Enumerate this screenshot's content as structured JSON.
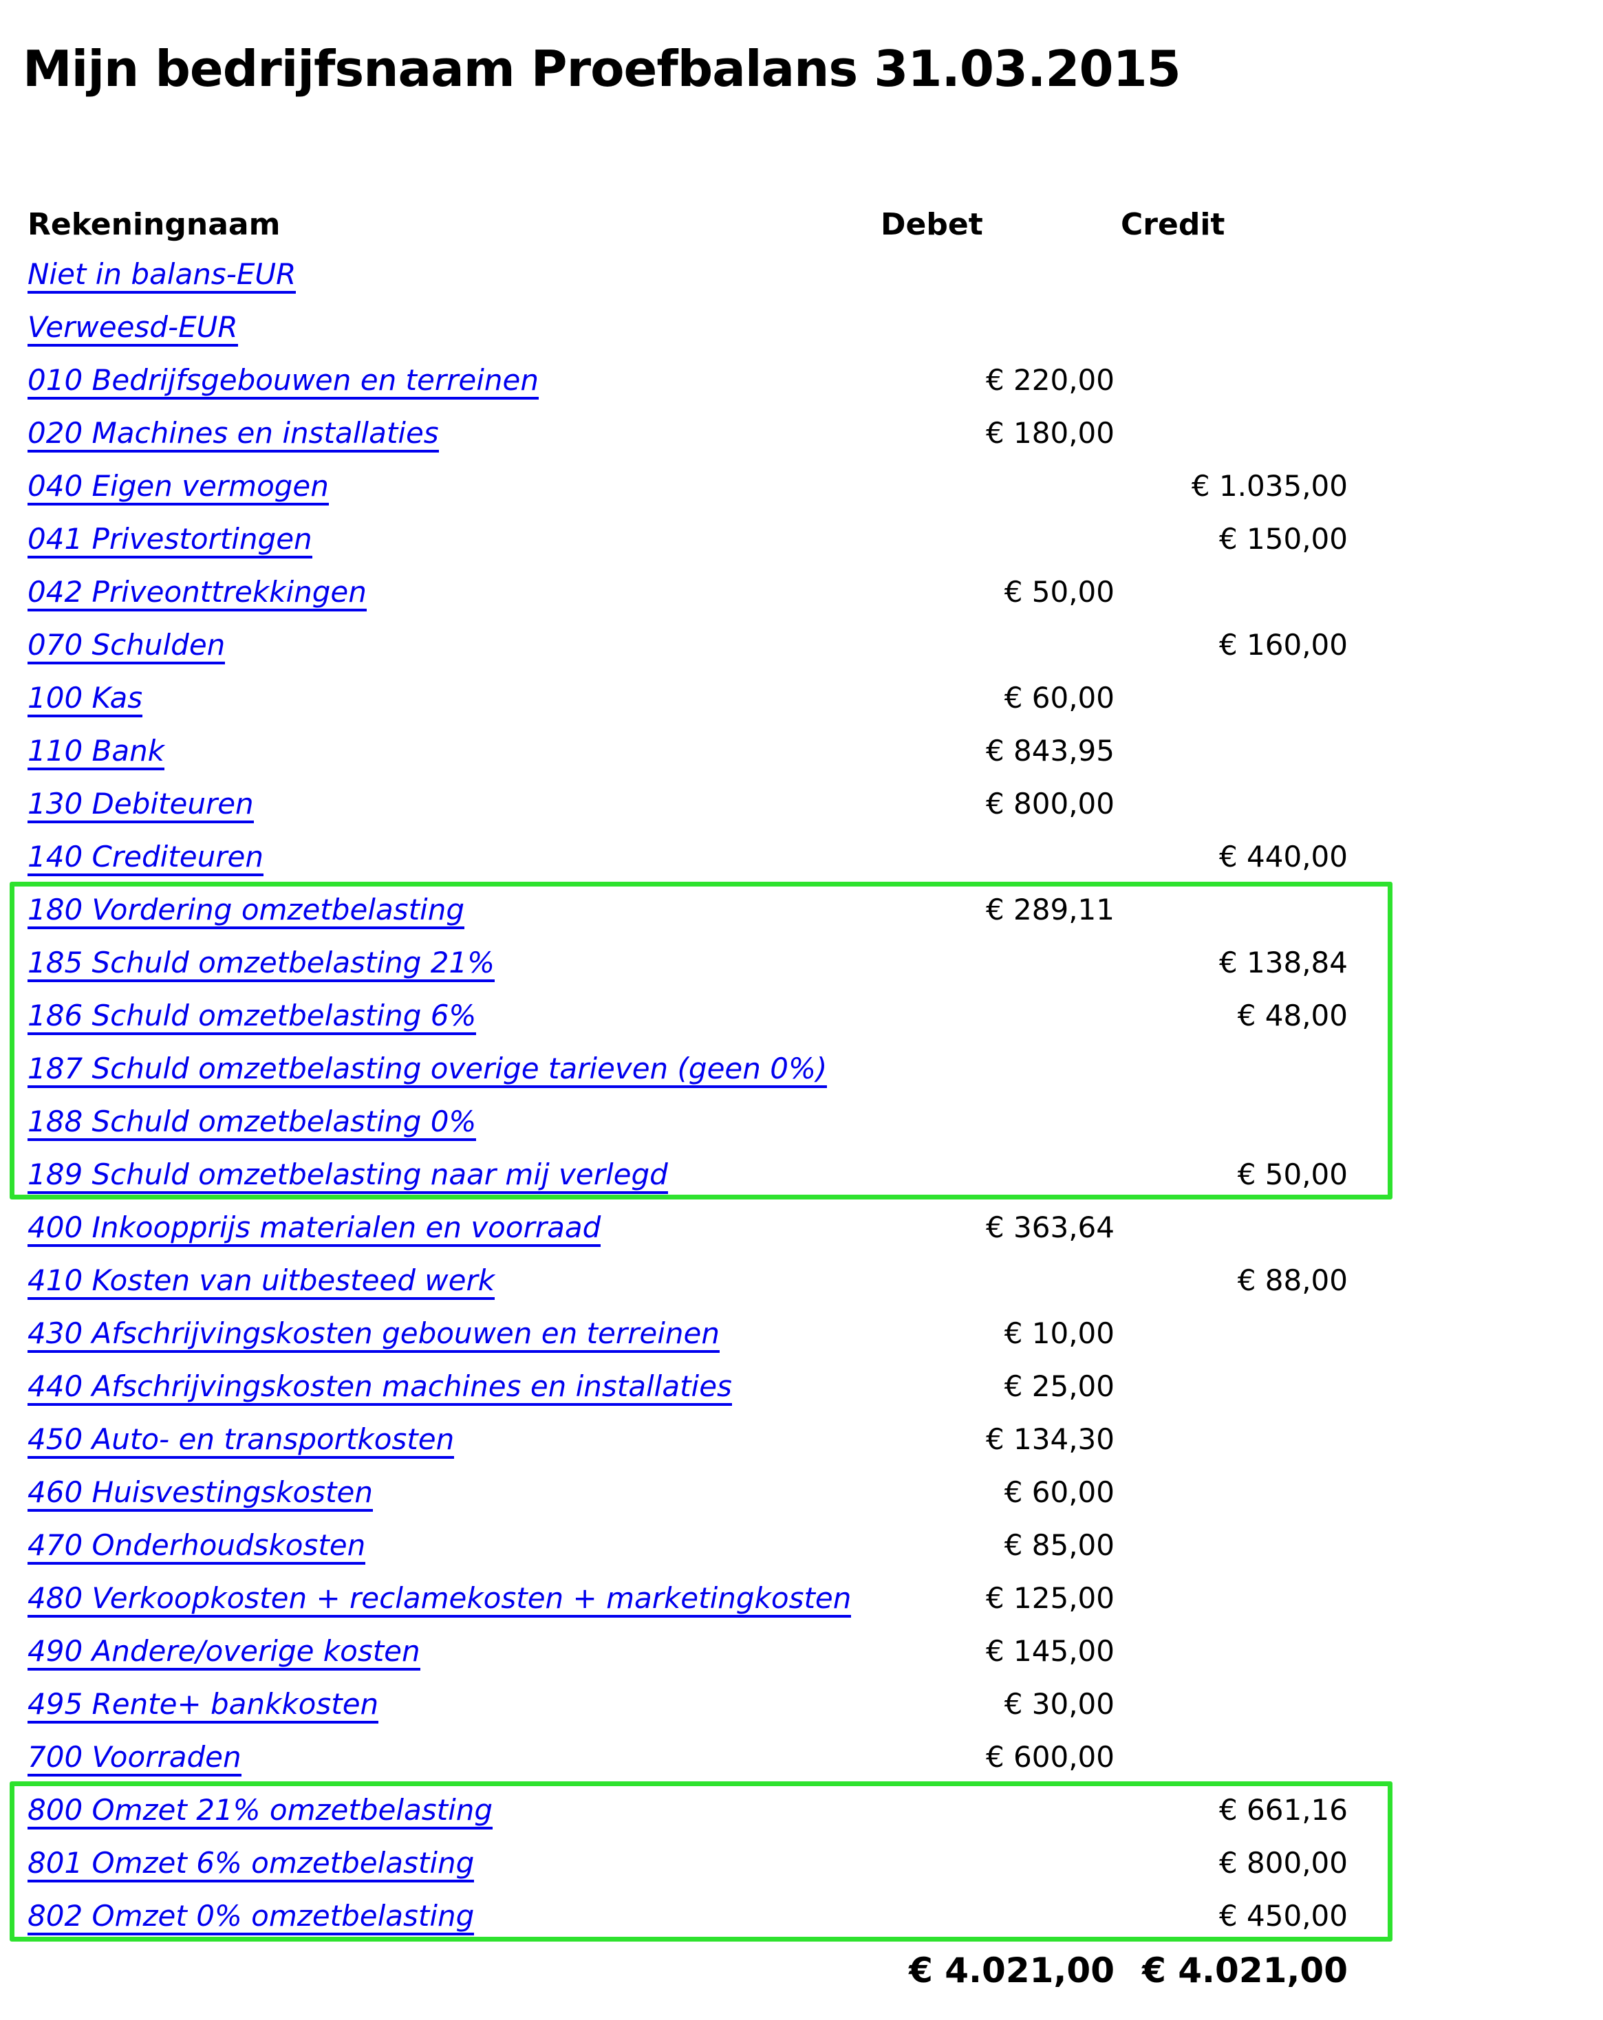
{
  "title": "Mijn bedrijfsnaam Proefbalans 31.03.2015",
  "colors": {
    "link_blue": "#0000ee",
    "highlight_green": "#2ee22e",
    "text_black": "#000000"
  },
  "table": {
    "headers": {
      "name": "Rekeningnaam",
      "debet": "Debet",
      "credit": "Credit"
    },
    "rows": [
      {
        "name": "Niet in balans-EUR",
        "debet": "",
        "credit": ""
      },
      {
        "name": "Verweesd-EUR",
        "debet": "",
        "credit": ""
      },
      {
        "name": "010 Bedrijfsgebouwen en terreinen",
        "debet": "€ 220,00",
        "credit": ""
      },
      {
        "name": "020 Machines en installaties",
        "debet": "€ 180,00",
        "credit": ""
      },
      {
        "name": "040 Eigen vermogen",
        "debet": "",
        "credit": "€ 1.035,00"
      },
      {
        "name": "041 Privestortingen",
        "debet": "",
        "credit": "€ 150,00"
      },
      {
        "name": "042 Priveonttrekkingen",
        "debet": "€ 50,00",
        "credit": ""
      },
      {
        "name": "070 Schulden",
        "debet": "",
        "credit": "€ 160,00"
      },
      {
        "name": "100 Kas",
        "debet": "€ 60,00",
        "credit": ""
      },
      {
        "name": "110 Bank",
        "debet": "€ 843,95",
        "credit": ""
      },
      {
        "name": "130 Debiteuren",
        "debet": "€ 800,00",
        "credit": ""
      },
      {
        "name": "140 Crediteuren",
        "debet": "",
        "credit": "€ 440,00"
      },
      {
        "name": "180 Vordering omzetbelasting",
        "debet": "€ 289,11",
        "credit": ""
      },
      {
        "name": "185 Schuld omzetbelasting 21%",
        "debet": "",
        "credit": "€ 138,84"
      },
      {
        "name": "186 Schuld omzetbelasting 6%",
        "debet": "",
        "credit": "€ 48,00"
      },
      {
        "name": "187 Schuld omzetbelasting overige tarieven (geen 0%)",
        "debet": "",
        "credit": ""
      },
      {
        "name": "188 Schuld omzetbelasting 0%",
        "debet": "",
        "credit": ""
      },
      {
        "name": "189 Schuld omzetbelasting naar mij verlegd",
        "debet": "",
        "credit": "€ 50,00"
      },
      {
        "name": "400 Inkoopprijs materialen en voorraad",
        "debet": "€ 363,64",
        "credit": ""
      },
      {
        "name": "410 Kosten van uitbesteed werk",
        "debet": "",
        "credit": "€ 88,00"
      },
      {
        "name": "430 Afschrijvingskosten gebouwen en terreinen",
        "debet": "€ 10,00",
        "credit": ""
      },
      {
        "name": "440 Afschrijvingskosten machines en installaties",
        "debet": "€ 25,00",
        "credit": ""
      },
      {
        "name": "450 Auto- en transportkosten",
        "debet": "€ 134,30",
        "credit": ""
      },
      {
        "name": "460 Huisvestingskosten",
        "debet": "€ 60,00",
        "credit": ""
      },
      {
        "name": "470 Onderhoudskosten",
        "debet": "€ 85,00",
        "credit": ""
      },
      {
        "name": "480 Verkoopkosten + reclamekosten + marketingkosten",
        "debet": "€ 125,00",
        "credit": ""
      },
      {
        "name": "490 Andere/overige kosten",
        "debet": "€ 145,00",
        "credit": ""
      },
      {
        "name": "495 Rente+ bankkosten",
        "debet": "€ 30,00",
        "credit": ""
      },
      {
        "name": "700 Voorraden",
        "debet": "€ 600,00",
        "credit": ""
      },
      {
        "name": "800 Omzet 21% omzetbelasting",
        "debet": "",
        "credit": "€ 661,16"
      },
      {
        "name": "801 Omzet 6% omzetbelasting",
        "debet": "",
        "credit": "€ 800,00"
      },
      {
        "name": "802 Omzet 0% omzetbelasting",
        "debet": "",
        "credit": "€ 450,00"
      }
    ],
    "totals": {
      "debet": "€ 4.021,00",
      "credit": "€ 4.021,00"
    }
  }
}
